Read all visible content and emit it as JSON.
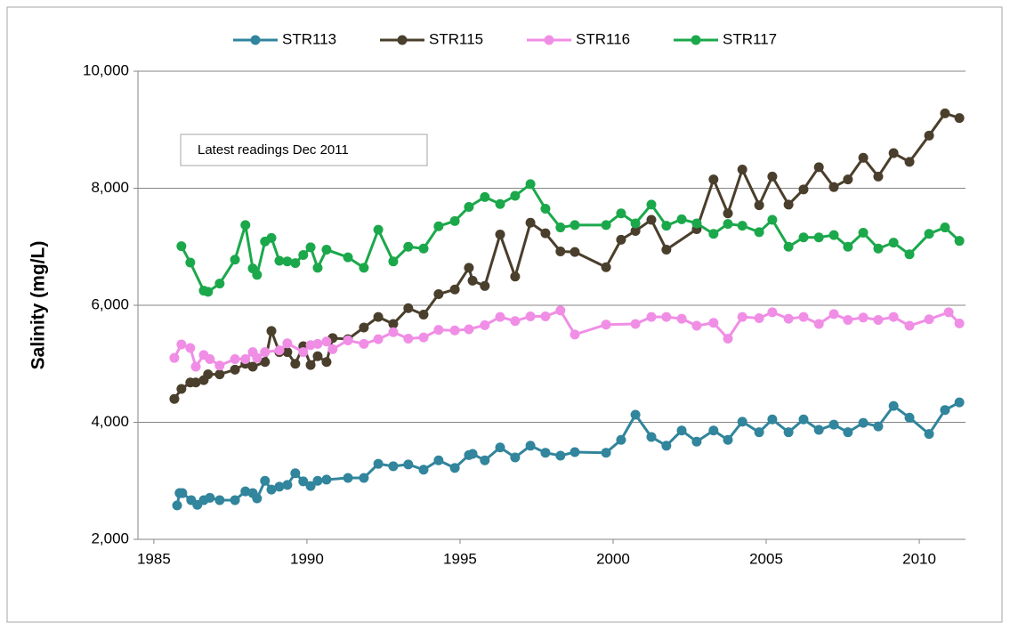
{
  "chart_data": {
    "type": "line",
    "y_label": "Salinity  (mg/L)",
    "annotation": "Latest readings Dec 2011",
    "legend": "top",
    "grid": true,
    "xlim": [
      1984.48,
      2011.51
    ],
    "xticks": [
      1985,
      1990,
      1995,
      2000,
      2005,
      2010
    ],
    "ylim": [
      2000,
      10000
    ],
    "yticks": [
      {
        "value": 2000,
        "label": "2,000"
      },
      {
        "value": 4000,
        "label": "4,000"
      },
      {
        "value": 6000,
        "label": "6,000"
      },
      {
        "value": 8000,
        "label": "8,000"
      },
      {
        "value": 10000,
        "label": "10,000"
      }
    ],
    "series": [
      {
        "name": "STR113",
        "color": "#31859c",
        "x": [
          1985.76,
          1985.84,
          1985.93,
          1986.22,
          1986.42,
          1986.63,
          1986.83,
          1987.15,
          1987.65,
          1987.99,
          1988.23,
          1988.37,
          1988.63,
          1988.84,
          1989.1,
          1989.36,
          1989.62,
          1989.88,
          1990.12,
          1990.35,
          1990.64,
          1991.34,
          1991.86,
          1992.33,
          1992.82,
          1993.31,
          1993.81,
          1994.3,
          1994.83,
          1995.29,
          1995.41,
          1995.81,
          1996.31,
          1996.8,
          1997.3,
          1997.79,
          1998.28,
          1998.75,
          1999.77,
          2000.26,
          2000.73,
          2001.25,
          2001.74,
          2002.24,
          2002.73,
          2003.28,
          2003.75,
          2004.22,
          2004.77,
          2005.2,
          2005.73,
          2006.22,
          2006.72,
          2007.21,
          2007.67,
          2008.17,
          2008.66,
          2009.16,
          2009.68,
          2010.32,
          2010.84,
          2011.31
        ],
        "values": [
          2580,
          2790,
          2790,
          2670,
          2590,
          2670,
          2710,
          2670,
          2670,
          2820,
          2790,
          2700,
          3000,
          2850,
          2900,
          2930,
          3130,
          2990,
          2910,
          3000,
          3020,
          3050,
          3050,
          3290,
          3250,
          3280,
          3190,
          3350,
          3220,
          3440,
          3460,
          3350,
          3570,
          3400,
          3600,
          3480,
          3430,
          3490,
          3480,
          3700,
          4130,
          3750,
          3600,
          3860,
          3670,
          3860,
          3700,
          4010,
          3830,
          4050,
          3830,
          4050,
          3870,
          3960,
          3830,
          3990,
          3930,
          4280,
          4080,
          3800,
          4210,
          4340
        ]
      },
      {
        "name": "STR115",
        "color": "#4a3f2c",
        "x": [
          1985.67,
          1985.9,
          1986.19,
          1986.37,
          1986.63,
          1986.77,
          1987.15,
          1987.65,
          1987.99,
          1988.23,
          1988.63,
          1988.84,
          1989.1,
          1989.36,
          1989.62,
          1989.88,
          1990.12,
          1990.35,
          1990.64,
          1990.84,
          1991.34,
          1991.86,
          1992.33,
          1992.82,
          1993.31,
          1993.81,
          1994.3,
          1994.83,
          1995.29,
          1995.41,
          1995.81,
          1996.31,
          1996.8,
          1997.3,
          1997.79,
          1998.28,
          1998.75,
          1999.77,
          2000.26,
          2000.73,
          2001.25,
          2001.74,
          2002.73,
          2003.28,
          2003.75,
          2004.22,
          2004.77,
          2005.2,
          2005.73,
          2006.22,
          2006.72,
          2007.21,
          2007.67,
          2008.17,
          2008.66,
          2009.16,
          2009.68,
          2010.32,
          2010.84,
          2011.31
        ],
        "values": [
          4400,
          4570,
          4680,
          4680,
          4720,
          4820,
          4820,
          4900,
          5000,
          4950,
          5030,
          5560,
          5200,
          5200,
          5000,
          5300,
          4980,
          5130,
          5030,
          5440,
          5420,
          5620,
          5800,
          5680,
          5950,
          5840,
          6190,
          6270,
          6640,
          6420,
          6330,
          7210,
          6490,
          7410,
          7230,
          6920,
          6910,
          6650,
          7120,
          7270,
          7460,
          6950,
          7300,
          8150,
          7570,
          8320,
          7710,
          8200,
          7720,
          7980,
          8360,
          8020,
          8150,
          8520,
          8200,
          8600,
          8450,
          8900,
          9280,
          9200
        ]
      },
      {
        "name": "STR116",
        "color": "#f08ee6",
        "x": [
          1985.67,
          1985.9,
          1986.19,
          1986.37,
          1986.63,
          1986.83,
          1987.15,
          1987.65,
          1987.99,
          1988.23,
          1988.37,
          1988.63,
          1989.1,
          1989.36,
          1989.88,
          1990.12,
          1990.35,
          1990.64,
          1990.84,
          1991.34,
          1991.86,
          1992.33,
          1992.82,
          1993.31,
          1993.81,
          1994.3,
          1994.83,
          1995.29,
          1995.81,
          1996.31,
          1996.8,
          1997.3,
          1997.79,
          1998.28,
          1998.75,
          1999.77,
          2000.73,
          2001.25,
          2001.74,
          2002.24,
          2002.73,
          2003.28,
          2003.75,
          2004.22,
          2004.77,
          2005.2,
          2005.73,
          2006.22,
          2006.72,
          2007.21,
          2007.67,
          2008.17,
          2008.66,
          2009.16,
          2009.68,
          2010.32,
          2010.96,
          2011.31
        ],
        "values": [
          5100,
          5330,
          5270,
          4950,
          5150,
          5080,
          4970,
          5080,
          5080,
          5200,
          5100,
          5200,
          5230,
          5350,
          5200,
          5320,
          5340,
          5380,
          5250,
          5400,
          5340,
          5420,
          5540,
          5430,
          5450,
          5580,
          5570,
          5590,
          5660,
          5800,
          5730,
          5810,
          5810,
          5910,
          5500,
          5670,
          5680,
          5800,
          5800,
          5770,
          5650,
          5700,
          5430,
          5800,
          5780,
          5880,
          5770,
          5800,
          5680,
          5850,
          5750,
          5790,
          5750,
          5800,
          5650,
          5760,
          5880,
          5690
        ]
      },
      {
        "name": "STR117",
        "color": "#1ba84b",
        "x": [
          1985.9,
          1986.19,
          1986.63,
          1986.77,
          1987.15,
          1987.65,
          1987.99,
          1988.23,
          1988.37,
          1988.63,
          1988.84,
          1989.1,
          1989.36,
          1989.62,
          1989.88,
          1990.12,
          1990.35,
          1990.64,
          1991.34,
          1991.86,
          1992.33,
          1992.82,
          1993.31,
          1993.81,
          1994.3,
          1994.83,
          1995.29,
          1995.81,
          1996.31,
          1996.8,
          1997.3,
          1997.79,
          1998.28,
          1998.75,
          1999.77,
          2000.26,
          2000.73,
          2001.25,
          2001.74,
          2002.24,
          2002.73,
          2003.28,
          2003.75,
          2004.22,
          2004.77,
          2005.2,
          2005.73,
          2006.22,
          2006.72,
          2007.21,
          2007.67,
          2008.17,
          2008.66,
          2009.16,
          2009.68,
          2010.32,
          2010.84,
          2011.31
        ],
        "values": [
          7010,
          6730,
          6250,
          6230,
          6370,
          6780,
          7370,
          6630,
          6520,
          7090,
          7150,
          6760,
          6750,
          6720,
          6860,
          6990,
          6640,
          6950,
          6820,
          6640,
          7290,
          6750,
          7000,
          6970,
          7350,
          7440,
          7680,
          7850,
          7730,
          7870,
          8070,
          7650,
          7330,
          7370,
          7370,
          7570,
          7400,
          7720,
          7360,
          7470,
          7400,
          7220,
          7390,
          7360,
          7250,
          7460,
          7000,
          7160,
          7160,
          7200,
          7000,
          7240,
          6970,
          7070,
          6870,
          7220,
          7330,
          7100
        ]
      }
    ]
  }
}
